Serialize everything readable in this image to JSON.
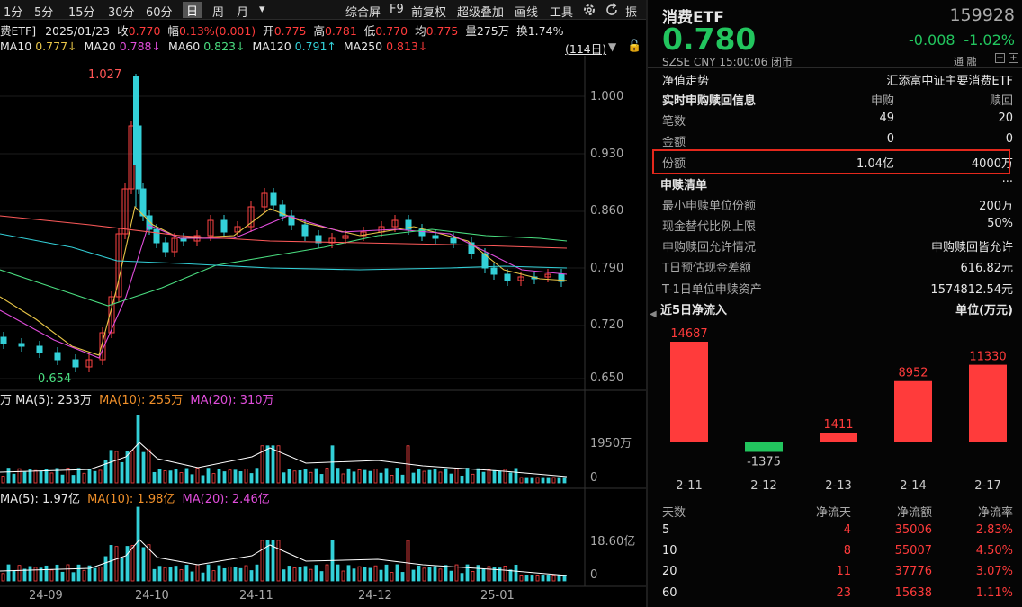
{
  "toolbar": {
    "periods": [
      "1分",
      "5分",
      "15分",
      "30分",
      "60分",
      "日",
      "周",
      "月"
    ],
    "dropdown": "▾",
    "tools": [
      "综合屏",
      "F9",
      "前复权",
      "超级叠加",
      "画线",
      "工具"
    ],
    "more": "振"
  },
  "info_line": {
    "name": "费ETF]",
    "date": "2025/01/23",
    "close_label": "收",
    "close": "0.770",
    "range_label": "幅",
    "range": "0.13%(0.001)",
    "open_label": "开",
    "open": "0.775",
    "high_label": "高",
    "high": "0.781",
    "low_label": "低",
    "low": "0.770",
    "avg_label": "均",
    "avg": "0.775",
    "vol_label": "量",
    "vol": "275万",
    "turn_label": "换",
    "turn": "1.74%"
  },
  "ma_line": {
    "ma10": "MA10",
    "ma10_val": "0.777↓",
    "ma20": "MA20",
    "ma20_val": "0.788↓",
    "ma60": "MA60",
    "ma60_val": "0.823↓",
    "ma120": "MA120",
    "ma120_val": "0.791↑",
    "ma250": "MA250",
    "ma250_val": "0.813↓",
    "days": "(114日)"
  },
  "price_axis": [
    "1.000",
    "0.930",
    "0.860",
    "0.790",
    "0.720",
    "0.650"
  ],
  "annotations": {
    "high": "1.027",
    "low": "0.654"
  },
  "volume_header": {
    "prefix": "万",
    "ma5": "MA(5): 253万",
    "ma10": "MA(10): 255万",
    "ma20": "MA(20): 310万"
  },
  "volume_axis": [
    "1950万",
    "0"
  ],
  "amount_header": {
    "ma5": "MA(5): 1.97亿",
    "ma10": "MA(10): 1.98亿",
    "ma20": "MA(20): 2.46亿"
  },
  "amount_axis": [
    "18.60亿",
    "0"
  ],
  "date_axis": [
    "24-09",
    "24-10",
    "24-11",
    "24-12",
    "25-01"
  ],
  "panel": {
    "title": "消费ETF",
    "code": "159928",
    "price": "0.780",
    "change": "-0.008",
    "change_pct": "-1.02%",
    "meta": "SZSE  CNY  15:00:06  闭市",
    "flags": "通  融",
    "nav_label": "净值走势",
    "nav_value": "汇添富中证主要消费ETF",
    "sub_header": {
      "title": "实时申购赎回信息",
      "col1": "申购",
      "col2": "赎回"
    },
    "sub_rows": [
      {
        "label": "笔数",
        "a": "49",
        "b": "20"
      },
      {
        "label": "金额",
        "a": "0",
        "b": "0"
      },
      {
        "label": "份额",
        "a": "1.04亿",
        "b": "4000万"
      }
    ],
    "list_title": "申赎清单",
    "list_more": "···",
    "list_rows": [
      {
        "label": "最小申赎单位份额",
        "value": "200万"
      },
      {
        "label": "现金替代比例上限",
        "value": "50%"
      },
      {
        "label": "申购赎回允许情况",
        "value": "申购赎回皆允许"
      },
      {
        "label": "T日预估现金差额",
        "value": "616.82元"
      },
      {
        "label": "T-1日单位申赎资产",
        "value": "1574812.54元"
      }
    ],
    "flow_title": "近5日净流入",
    "flow_unit": "单位(万元)",
    "flow_table_header": {
      "days": "天数",
      "net_days": "净流天",
      "net_amount": "净流额",
      "net_rate": "净流率"
    },
    "flow_table": [
      {
        "days": "5",
        "net_days": "4",
        "net_amount": "35006",
        "net_rate": "2.83%"
      },
      {
        "days": "10",
        "net_days": "8",
        "net_amount": "55007",
        "net_rate": "4.50%"
      },
      {
        "days": "20",
        "net_days": "11",
        "net_amount": "37776",
        "net_rate": "3.07%"
      },
      {
        "days": "60",
        "net_days": "23",
        "net_amount": "15638",
        "net_rate": "1.11%"
      }
    ]
  },
  "colors": {
    "up": "#ff3b3b",
    "down": "#22c55e",
    "cyan": "#33d0d8",
    "highlight": "#e4281c"
  },
  "chart_data": {
    "type": "bar",
    "title": "近5日净流入",
    "ylabel": "单位(万元)",
    "categories": [
      "2-11",
      "2-12",
      "2-13",
      "2-14",
      "2-17"
    ],
    "values": [
      14687,
      -1375,
      1411,
      8952,
      11330
    ],
    "ylim": [
      -1375,
      14687
    ]
  }
}
